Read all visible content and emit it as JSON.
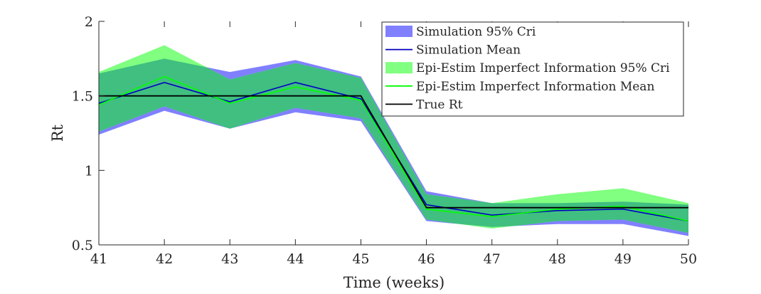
{
  "chart_data": {
    "type": "area",
    "title": "",
    "xlabel": "Time  (weeks)",
    "ylabel": "Rt",
    "xlim": [
      41,
      50
    ],
    "ylim": [
      0.5,
      2
    ],
    "xticks": [
      41,
      42,
      43,
      44,
      45,
      46,
      47,
      48,
      49,
      50
    ],
    "xtick_labels": [
      "41",
      "42",
      "43",
      "44",
      "45",
      "46",
      "47",
      "48",
      "49",
      "50"
    ],
    "yticks": [
      0.5,
      1,
      1.5,
      2
    ],
    "ytick_labels": [
      "0.5",
      "1",
      "1.5",
      "2"
    ],
    "grid": false,
    "legend_position": "top-right",
    "x": [
      41,
      42,
      43,
      44,
      45,
      46,
      47,
      48,
      49,
      50
    ],
    "bands": [
      {
        "name": "Simulation  95% Cri",
        "color": "#8080ff",
        "lower": [
          1.24,
          1.4,
          1.28,
          1.39,
          1.33,
          0.66,
          0.62,
          0.64,
          0.64,
          0.56
        ],
        "upper": [
          1.65,
          1.75,
          1.66,
          1.74,
          1.63,
          0.86,
          0.78,
          0.78,
          0.79,
          0.77
        ]
      },
      {
        "name": "Epi-Estim  Imperfect  Information  95%  Cri",
        "color": "#80ff80",
        "lower": [
          1.26,
          1.43,
          1.28,
          1.42,
          1.35,
          0.67,
          0.61,
          0.66,
          0.67,
          0.58
        ],
        "upper": [
          1.66,
          1.84,
          1.61,
          1.72,
          1.62,
          0.84,
          0.78,
          0.84,
          0.88,
          0.78
        ]
      }
    ],
    "series": [
      {
        "name": "Simulation  Mean",
        "color": "#0000bf",
        "values": [
          1.45,
          1.59,
          1.46,
          1.59,
          1.48,
          0.77,
          0.7,
          0.73,
          0.74,
          0.66
        ]
      },
      {
        "name": "Epi-Estim  Imperfect  Information  Mean",
        "color": "#00ff00",
        "values": [
          1.44,
          1.63,
          1.45,
          1.56,
          1.47,
          0.74,
          0.69,
          0.74,
          0.76,
          0.66
        ]
      },
      {
        "name": "True  Rt",
        "color": "#000000",
        "values": [
          1.5,
          1.5,
          1.5,
          1.5,
          1.5,
          0.75,
          0.75,
          0.75,
          0.75,
          0.75
        ]
      }
    ],
    "overlap_color": "#40bf80",
    "legend": [
      {
        "label": "Simulation  95%  Cri",
        "kind": "patch",
        "color": "#8080ff"
      },
      {
        "label": "Simulation  Mean",
        "kind": "line",
        "color": "#0000bf"
      },
      {
        "label": "Epi-Estim  Imperfect  Information  95%  Cri",
        "kind": "patch",
        "color": "#80ff80"
      },
      {
        "label": "Epi-Estim  Imperfect  Information  Mean",
        "kind": "line",
        "color": "#00ff00"
      },
      {
        "label": "True  Rt",
        "kind": "line",
        "color": "#000000"
      }
    ]
  }
}
